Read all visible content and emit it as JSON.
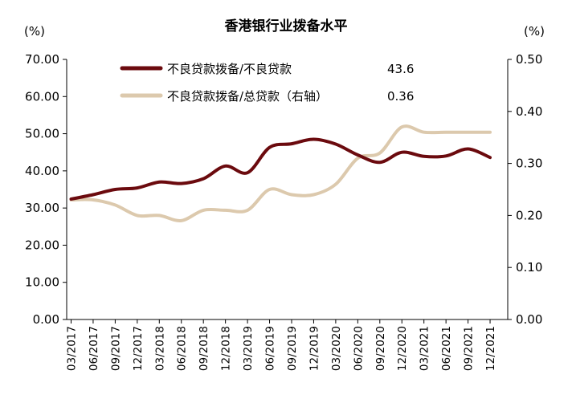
{
  "chart_data": {
    "type": "line",
    "title": "香港银行业拨备水平",
    "left_unit": "(%)",
    "right_unit": "(%)",
    "y_left": {
      "min": 0,
      "max": 70,
      "step": 10,
      "tick_labels": [
        "0.00",
        "10.00",
        "20.00",
        "30.00",
        "40.00",
        "50.00",
        "60.00",
        "70.00"
      ]
    },
    "y_right": {
      "min": 0,
      "max": 0.5,
      "step": 0.1,
      "tick_labels": [
        "0.00",
        "0.10",
        "0.20",
        "0.30",
        "0.40",
        "0.50"
      ]
    },
    "categories": [
      "03/2017",
      "06/2017",
      "09/2017",
      "12/2017",
      "03/2018",
      "06/2018",
      "09/2018",
      "12/2018",
      "03/2019",
      "06/2019",
      "09/2019",
      "12/2019",
      "03/2020",
      "06/2020",
      "09/2020",
      "12/2020",
      "03/2021",
      "06/2021",
      "09/2021",
      "12/2021"
    ],
    "series": [
      {
        "name": "不良贷款拨备/不良贷款",
        "axis": "left",
        "color": "#6b0a0e",
        "latest_label": "43.6",
        "values": [
          32.4,
          33.6,
          35.0,
          35.4,
          37.0,
          36.6,
          37.9,
          41.3,
          39.5,
          46.3,
          47.3,
          48.5,
          47.2,
          44.3,
          42.3,
          45.0,
          43.9,
          44.0,
          45.9,
          43.6
        ]
      },
      {
        "name": "不良贷款拨备/总贷款（右轴）",
        "axis": "right",
        "color": "#dcc9ad",
        "latest_label": "0.36",
        "values": [
          0.23,
          0.23,
          0.22,
          0.2,
          0.2,
          0.19,
          0.21,
          0.21,
          0.21,
          0.25,
          0.24,
          0.24,
          0.26,
          0.31,
          0.32,
          0.37,
          0.36,
          0.36,
          0.36,
          0.36
        ]
      }
    ],
    "grid": false,
    "legend_position": "top-center"
  }
}
